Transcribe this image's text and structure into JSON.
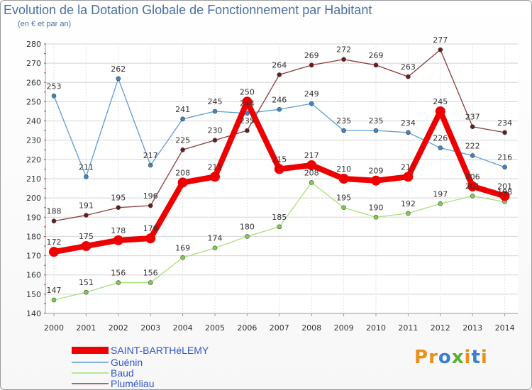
{
  "header": {
    "title": "Evolution de la Dotation Globale de Fonctionnement par Habitant",
    "subtitle": "(en € et par an)"
  },
  "logo": {
    "letters": [
      "P",
      "r",
      "o",
      "x",
      "i",
      "t",
      "i"
    ],
    "colors": [
      "#e8901e",
      "#e8901e",
      "#3a7fd0",
      "#5bb030",
      "#e8901e",
      "#3a7fd0",
      "#e8901e"
    ]
  },
  "chart_data": {
    "type": "line",
    "title": "Evolution de la Dotation Globale de Fonctionnement par Habitant",
    "subtitle": "(en € et par an)",
    "xlabel": "",
    "ylabel": "",
    "ylim": [
      140,
      280
    ],
    "ystep": 10,
    "grid": true,
    "legend_position": "bottom-left",
    "x": [
      "2000",
      "2001",
      "2002",
      "2003",
      "2004",
      "2005",
      "2006",
      "2007",
      "2008",
      "2009",
      "2010",
      "2011",
      "2012",
      "2013",
      "2014"
    ],
    "series": [
      {
        "name": "SAINT-BARTHéLEMY",
        "color": "#ee0000",
        "marker": "#ee0000",
        "width": "thick",
        "values": [
          172,
          175,
          178,
          179,
          208,
          211,
          250,
          215,
          217,
          210,
          209,
          211,
          245,
          206,
          201
        ]
      },
      {
        "name": "Guénin",
        "color": "#5b9bd5",
        "marker": "#3d85c6",
        "width": "thin",
        "values": [
          253,
          211,
          262,
          217,
          241,
          245,
          244,
          246,
          249,
          235,
          235,
          234,
          226,
          222,
          216
        ]
      },
      {
        "name": "Baud",
        "color": "#a6e07a",
        "marker": "#7fcf4a",
        "width": "thin",
        "values": [
          147,
          151,
          156,
          156,
          169,
          174,
          180,
          185,
          208,
          195,
          190,
          192,
          197,
          201,
          198
        ]
      },
      {
        "name": "Pluméliau",
        "color": "#8b3a3a",
        "marker": "#6b1a1a",
        "width": "thin",
        "values": [
          188,
          191,
          195,
          196,
          225,
          230,
          235,
          264,
          269,
          272,
          269,
          263,
          277,
          237,
          234
        ]
      }
    ]
  }
}
